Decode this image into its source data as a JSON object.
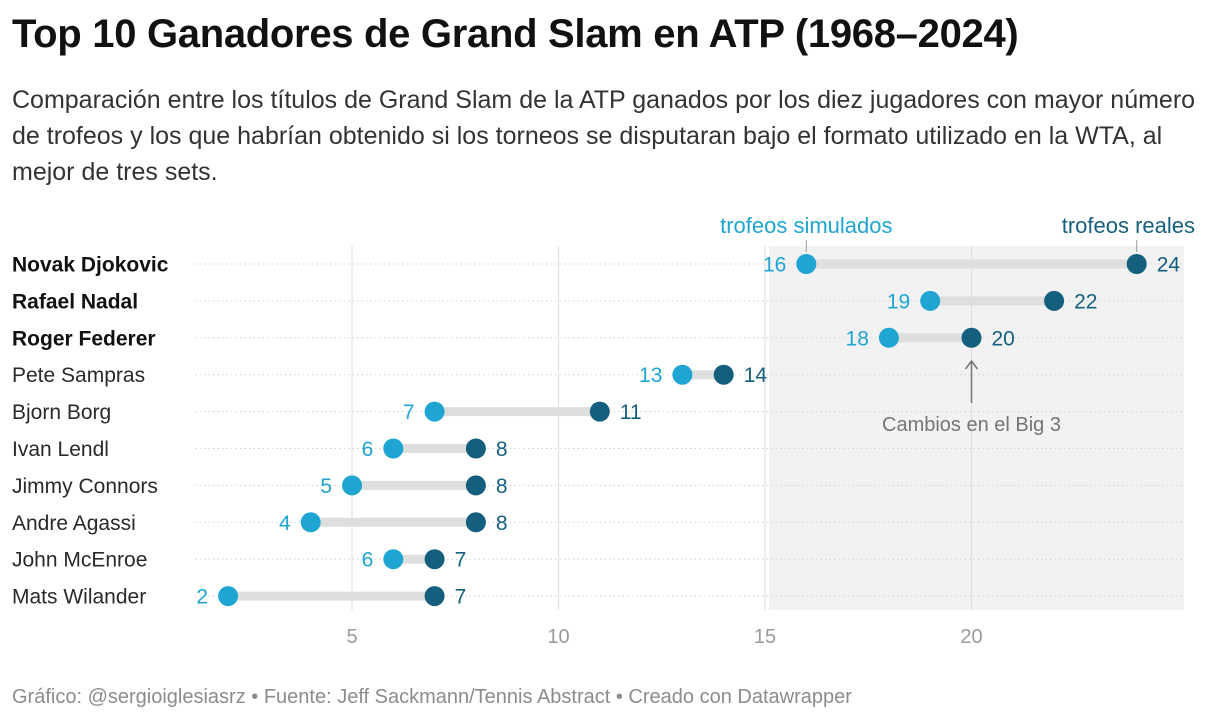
{
  "title": "Top 10 Ganadores de Grand Slam en ATP (1968–2024)",
  "subtitle": "Comparación entre los títulos de Grand Slam de la ATP ganados por los diez jugadores con mayor número de trofeos y los que habrían obtenido si los torneos se disputaran bajo el formato utilizado en la WTA, al mejor de tres sets.",
  "footer": "Gráfico: @sergioiglesiasrz • Fuente: Jeff Sackmann/Tennis Abstract • Creado con Datawrapper",
  "colors": {
    "simulated": "#1ea5d2",
    "real": "#155f7e",
    "connector": "#dedede",
    "highlight_bg": "#f2f2f2",
    "axis_text": "#9a9a9a",
    "annotation": "#757575"
  },
  "chart_data": {
    "type": "dot-range",
    "x_ticks": [
      5,
      10,
      15,
      20
    ],
    "highlight_range": [
      15,
      26
    ],
    "series": [
      {
        "name": "trofeos simulados",
        "key": "simulated"
      },
      {
        "name": "trofeos reales",
        "key": "real"
      }
    ],
    "rows": [
      {
        "player": "Novak Djokovic",
        "bold": true,
        "simulated": 16,
        "real": 24
      },
      {
        "player": "Rafael Nadal",
        "bold": true,
        "simulated": 19,
        "real": 22
      },
      {
        "player": "Roger Federer",
        "bold": true,
        "simulated": 18,
        "real": 20
      },
      {
        "player": "Pete Sampras",
        "bold": false,
        "simulated": 13,
        "real": 14
      },
      {
        "player": "Bjorn Borg",
        "bold": false,
        "simulated": 7,
        "real": 11
      },
      {
        "player": "Ivan Lendl",
        "bold": false,
        "simulated": 6,
        "real": 8
      },
      {
        "player": "Jimmy Connors",
        "bold": false,
        "simulated": 5,
        "real": 8
      },
      {
        "player": "Andre Agassi",
        "bold": false,
        "simulated": 4,
        "real": 8
      },
      {
        "player": "John McEnroe",
        "bold": false,
        "simulated": 6,
        "real": 7
      },
      {
        "player": "Mats Wilander",
        "bold": false,
        "simulated": 2,
        "real": 7
      }
    ],
    "annotation": {
      "text": "Cambios en el Big 3",
      "x": 20
    }
  }
}
